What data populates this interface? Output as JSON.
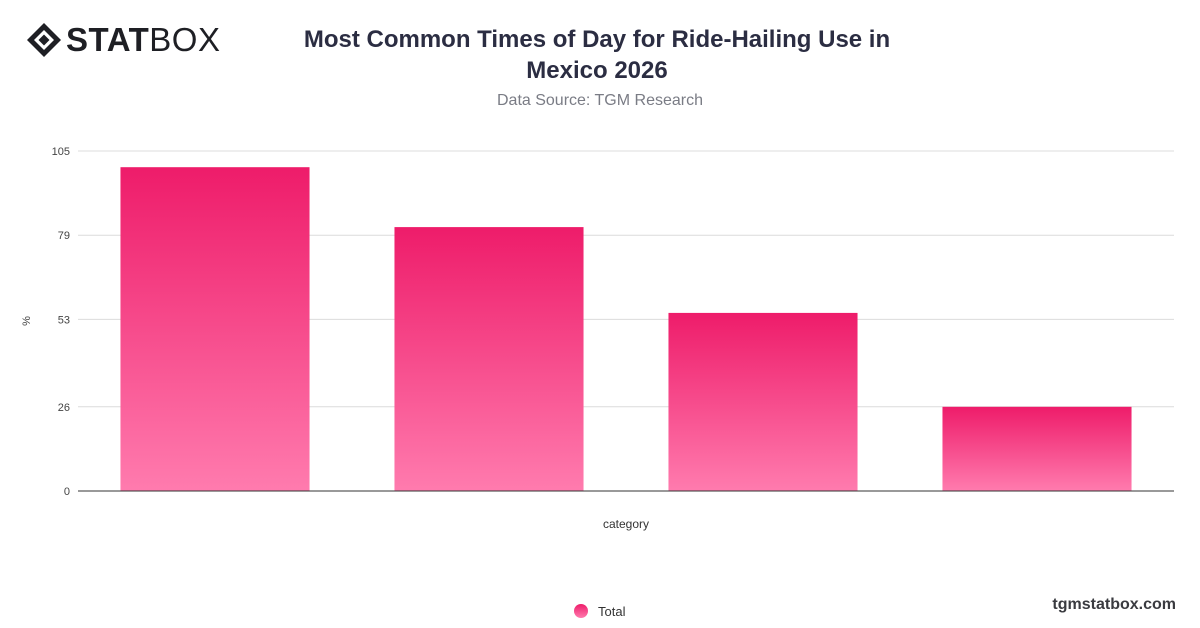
{
  "brand": {
    "logo_strong": "STAT",
    "logo_light": "BOX",
    "footer_site": "tgmstatbox.com"
  },
  "colors": {
    "bar_top": "#ee1c6a",
    "bar_bottom": "#ff7bae",
    "grid": "#dcdcdc",
    "axis": "#333333"
  },
  "chart_data": {
    "type": "bar",
    "title": "Most Common Times of Day for Ride-Hailing Use in Mexico 2026",
    "subtitle": "Data Source: TGM Research",
    "xlabel": "category",
    "ylabel": "%",
    "ylim": [
      0,
      105
    ],
    "yticks": [
      0,
      26,
      53,
      79,
      105
    ],
    "grid": true,
    "legend_position": "bottom-center",
    "categories": [
      "",
      "",
      "",
      ""
    ],
    "series": [
      {
        "name": "Total",
        "values": [
          100,
          81.5,
          55,
          26
        ]
      }
    ]
  }
}
